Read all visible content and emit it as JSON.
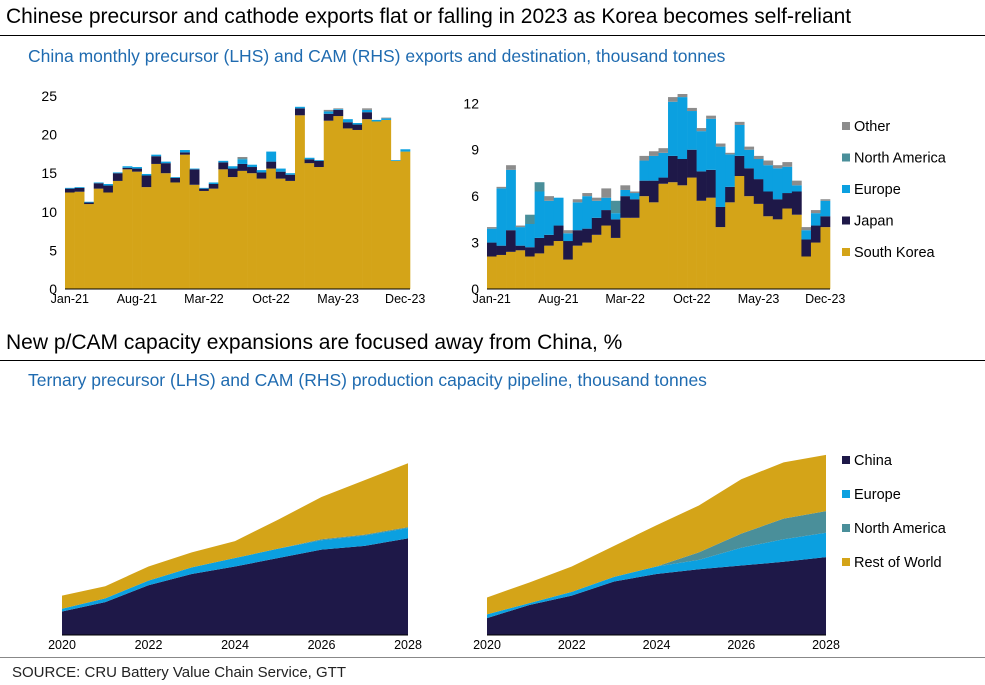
{
  "titles": {
    "main1": "Chinese precursor and cathode exports flat or falling in 2023 as Korea becomes self-reliant",
    "sub1": "China monthly precursor (LHS) and CAM (RHS) exports and destination, thousand tonnes",
    "main2": "New p/CAM capacity expansions are focused away from China, %",
    "sub2": "Ternary precursor (LHS) and CAM (RHS) production capacity pipeline, thousand tonnes",
    "source": "SOURCE: CRU Battery Value Chain Service, GTT"
  },
  "colors": {
    "South Korea": "#d4a418",
    "Japan": "#1e1848",
    "Europe": "#0ba0e0",
    "North America": "#4a8f9a",
    "Other": "#8c8c8c",
    "China": "#1e1848",
    "Rest of World": "#d4a418"
  },
  "chart_data": [
    {
      "type": "bar",
      "stacked": true,
      "title": "China monthly precursor exports",
      "ylim": [
        0,
        25
      ],
      "yticks": [
        0,
        5,
        10,
        15,
        20,
        25
      ],
      "xticklabels": [
        "Jan-21",
        "Aug-21",
        "Mar-22",
        "Oct-22",
        "May-23",
        "Dec-23"
      ],
      "xtick_index": [
        0,
        7,
        14,
        21,
        28,
        35
      ],
      "series": [
        {
          "name": "South Korea",
          "values": [
            12.5,
            12.6,
            11,
            13,
            12.5,
            14,
            15.5,
            15.2,
            13.2,
            16.2,
            15,
            13.8,
            17.4,
            13.5,
            12.7,
            13,
            15.5,
            14.5,
            15.3,
            15,
            14.3,
            15.6,
            14.3,
            14,
            22.5,
            16.3,
            15.8,
            21.8,
            22.4,
            20.8,
            20.6,
            22,
            21.7,
            21.9,
            16.6,
            17.8
          ]
        },
        {
          "name": "Japan",
          "values": [
            0.5,
            0.5,
            0.2,
            0.7,
            0.9,
            1,
            0.2,
            0.4,
            1.5,
            1,
            1.3,
            0.6,
            0.3,
            2,
            0.3,
            0.6,
            0.9,
            1.1,
            0.9,
            0.8,
            0.8,
            0.9,
            0.9,
            0.8,
            0.9,
            0.5,
            0.8,
            0.9,
            0.8,
            0.8,
            0.7,
            0.9,
            0,
            0,
            0,
            0
          ]
        },
        {
          "name": "Europe",
          "values": [
            0.1,
            0.1,
            0.1,
            0.1,
            0.2,
            0.1,
            0.2,
            0.2,
            0.2,
            0.2,
            0.2,
            0.1,
            0.3,
            0.1,
            0.1,
            0.2,
            0.2,
            0.3,
            0.6,
            0.3,
            0.3,
            1.3,
            0.4,
            0.2,
            0.2,
            0.2,
            0.1,
            0.3,
            0.1,
            0.4,
            0.2,
            0.3,
            0.2,
            0.2,
            0.1,
            0.3
          ]
        },
        {
          "name": "North America",
          "values": [
            0,
            0,
            0,
            0,
            0,
            0,
            0,
            0,
            0,
            0,
            0,
            0,
            0,
            0,
            0,
            0,
            0,
            0,
            0.1,
            0,
            0,
            0,
            0,
            0,
            0,
            0,
            0,
            0,
            0,
            0,
            0,
            0,
            0,
            0,
            0,
            0
          ]
        },
        {
          "name": "Other",
          "values": [
            0,
            0,
            0,
            0,
            0,
            0,
            0,
            0,
            0,
            0,
            0,
            0,
            0,
            0,
            0,
            0,
            0,
            0,
            0.2,
            0,
            0,
            0,
            0,
            0,
            0,
            0,
            0,
            0.2,
            0.1,
            0,
            0,
            0.2,
            0,
            0.1,
            0,
            0
          ]
        }
      ]
    },
    {
      "type": "bar",
      "stacked": true,
      "title": "China monthly CAM exports",
      "ylim": [
        0,
        12.6
      ],
      "yticks": [
        0,
        3,
        6,
        9,
        12
      ],
      "xticklabels": [
        "Jan-21",
        "Aug-21",
        "Mar-22",
        "Oct-22",
        "May-23",
        "Dec-23"
      ],
      "xtick_index": [
        0,
        7,
        14,
        21,
        28,
        35
      ],
      "legend": [
        "Other",
        "North America",
        "Europe",
        "Japan",
        "South Korea"
      ],
      "series": [
        {
          "name": "South Korea",
          "values": [
            2.1,
            2.2,
            2.4,
            2.5,
            2.1,
            2.3,
            2.8,
            3.1,
            1.9,
            2.8,
            3,
            3.5,
            4.1,
            3.3,
            4.6,
            4.6,
            6,
            5.6,
            6.8,
            6.9,
            6.7,
            7.2,
            5.7,
            5.9,
            4,
            5.6,
            7.3,
            6,
            5.5,
            4.7,
            4.5,
            5.2,
            4.8,
            2.1,
            3,
            4
          ]
        },
        {
          "name": "Japan",
          "values": [
            0.9,
            0.6,
            1.4,
            0.3,
            0.6,
            1,
            0.7,
            1,
            1.2,
            1,
            0.9,
            1.1,
            1,
            1.2,
            1.4,
            1.2,
            1,
            1.4,
            0.4,
            1.7,
            1.7,
            1.8,
            1.9,
            1.8,
            1.3,
            1,
            1.3,
            1.8,
            1.6,
            1.6,
            1.3,
            1,
            1.5,
            1.1,
            1.1,
            0.7
          ]
        },
        {
          "name": "Europe",
          "values": [
            0.9,
            3.7,
            3.9,
            1.2,
            1.5,
            3,
            2.2,
            1.8,
            0.5,
            1.8,
            2.1,
            1.1,
            0.8,
            0.4,
            0.4,
            0.4,
            1.3,
            1.6,
            1.6,
            3.5,
            4,
            2.5,
            2.6,
            3.3,
            3.9,
            2.1,
            2,
            1.2,
            1.3,
            1.7,
            2,
            1.7,
            0.4,
            0.6,
            0.8,
            1
          ]
        },
        {
          "name": "North America",
          "values": [
            0,
            0,
            0,
            0,
            0.6,
            0.6,
            0,
            0,
            0,
            0,
            0,
            0,
            0,
            0.8,
            0,
            0,
            0,
            0,
            0,
            0,
            0,
            0,
            0,
            0,
            0,
            0,
            0,
            0,
            0,
            0,
            0,
            0,
            0,
            0,
            0,
            0
          ]
        },
        {
          "name": "Other",
          "values": [
            0.1,
            0.1,
            0.3,
            0.1,
            0,
            0,
            0.3,
            0,
            0.2,
            0.2,
            0.2,
            0.2,
            0.6,
            0,
            0.3,
            0.1,
            0.3,
            0.3,
            0.3,
            0.3,
            0.2,
            0.2,
            0.2,
            0.2,
            0.2,
            0.1,
            0.2,
            0.2,
            0.2,
            0.3,
            0.2,
            0.3,
            0.3,
            0.2,
            0.2,
            0.1
          ]
        }
      ]
    },
    {
      "type": "area",
      "stacked": true,
      "title": "Ternary precursor production capacity pipeline",
      "x": [
        2020,
        2021,
        2022,
        2023,
        2024,
        2025,
        2026,
        2027,
        2028
      ],
      "xticklabels": [
        "2020",
        "2022",
        "2024",
        "2026",
        "2028"
      ],
      "ymax": 195,
      "series": [
        {
          "name": "China",
          "values": [
            25,
            35,
            53,
            65,
            73,
            82,
            91,
            95,
            103
          ]
        },
        {
          "name": "Europe",
          "values": [
            3,
            4,
            5,
            7,
            9,
            10,
            10,
            11,
            11
          ]
        },
        {
          "name": "North America",
          "values": [
            0,
            0,
            0,
            0,
            0,
            0,
            1,
            1,
            1
          ]
        },
        {
          "name": "Rest of World",
          "values": [
            14,
            13,
            15,
            16,
            18,
            31,
            45,
            58,
            68
          ]
        }
      ]
    },
    {
      "type": "area",
      "stacked": true,
      "title": "CAM production capacity pipeline",
      "x": [
        2020,
        2021,
        2022,
        2023,
        2024,
        2025,
        2026,
        2027,
        2028
      ],
      "xticklabels": [
        "2020",
        "2022",
        "2024",
        "2026",
        "2028"
      ],
      "ymax": 195,
      "legend": [
        "China",
        "Europe",
        "North America",
        "Rest of World"
      ],
      "series": [
        {
          "name": "China",
          "values": [
            18,
            32,
            42,
            57,
            65,
            70,
            74,
            78,
            83
          ]
        },
        {
          "name": "Europe",
          "values": [
            4,
            2,
            4,
            5,
            8,
            10,
            19,
            24,
            26
          ]
        },
        {
          "name": "North America",
          "values": [
            0,
            0,
            0,
            0,
            0,
            8,
            15,
            22,
            23
          ]
        },
        {
          "name": "Rest of World",
          "values": [
            18,
            22,
            27,
            33,
            44,
            50,
            58,
            60,
            60
          ]
        }
      ]
    }
  ]
}
